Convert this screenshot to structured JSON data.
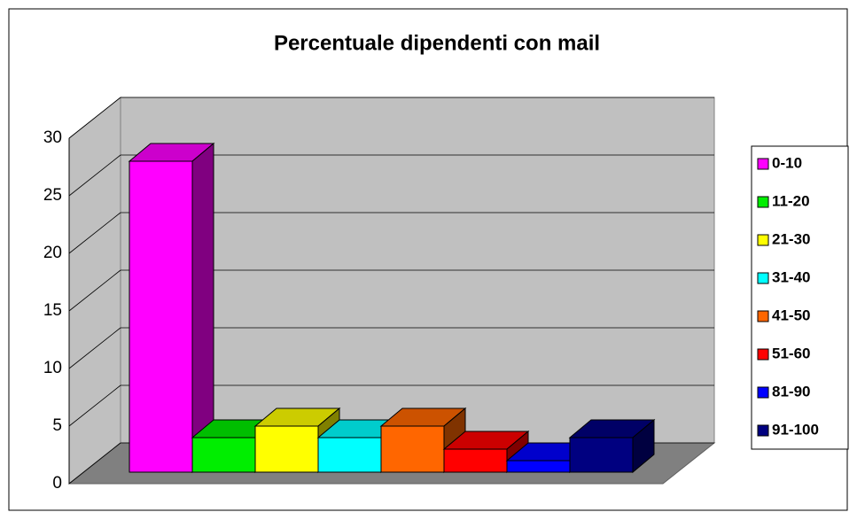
{
  "chart_data": {
    "type": "bar3d",
    "title": "Percentuale dipendenti con mail",
    "categories": [
      "0-10",
      "11-20",
      "21-30",
      "31-40",
      "41-50",
      "51-60",
      "81-90",
      "91-100"
    ],
    "values": [
      27,
      3,
      4,
      3,
      4,
      2,
      1,
      3
    ],
    "colors": [
      "#ff00ff",
      "#00ee00",
      "#ffff00",
      "#00ffff",
      "#ff6600",
      "#ff0000",
      "#0000ff",
      "#000080"
    ],
    "ylim": [
      0,
      30
    ],
    "yticks": [
      0,
      5,
      10,
      15,
      20,
      25,
      30
    ],
    "grid": true,
    "legend": "right"
  }
}
